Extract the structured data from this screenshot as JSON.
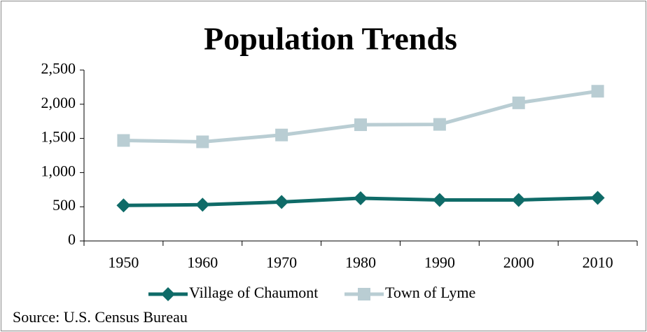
{
  "chart_data": {
    "type": "line",
    "title": "Population Trends",
    "categories": [
      "1950",
      "1960",
      "1970",
      "1980",
      "1990",
      "2000",
      "2010"
    ],
    "series": [
      {
        "name": "Village of Chaumont",
        "color": "#0f6b68",
        "marker": "diamond",
        "values": [
          520,
          530,
          570,
          625,
          600,
          600,
          630
        ]
      },
      {
        "name": "Town of Lyme",
        "color": "#b9cdd3",
        "marker": "square",
        "values": [
          1470,
          1450,
          1550,
          1700,
          1705,
          2020,
          2190
        ]
      }
    ],
    "ylim": [
      0,
      2500
    ],
    "yticks": [
      0,
      {
        "value": 500,
        "label": "500"
      },
      {
        "value": 1000,
        "label": "1,000"
      },
      {
        "value": 1500,
        "label": "1,500"
      },
      {
        "value": 2000,
        "label": "2,000"
      },
      {
        "value": 2500,
        "label": "2,500"
      }
    ],
    "grid": false,
    "legend": "bottom",
    "source": "Source: U.S. Census Bureau"
  }
}
